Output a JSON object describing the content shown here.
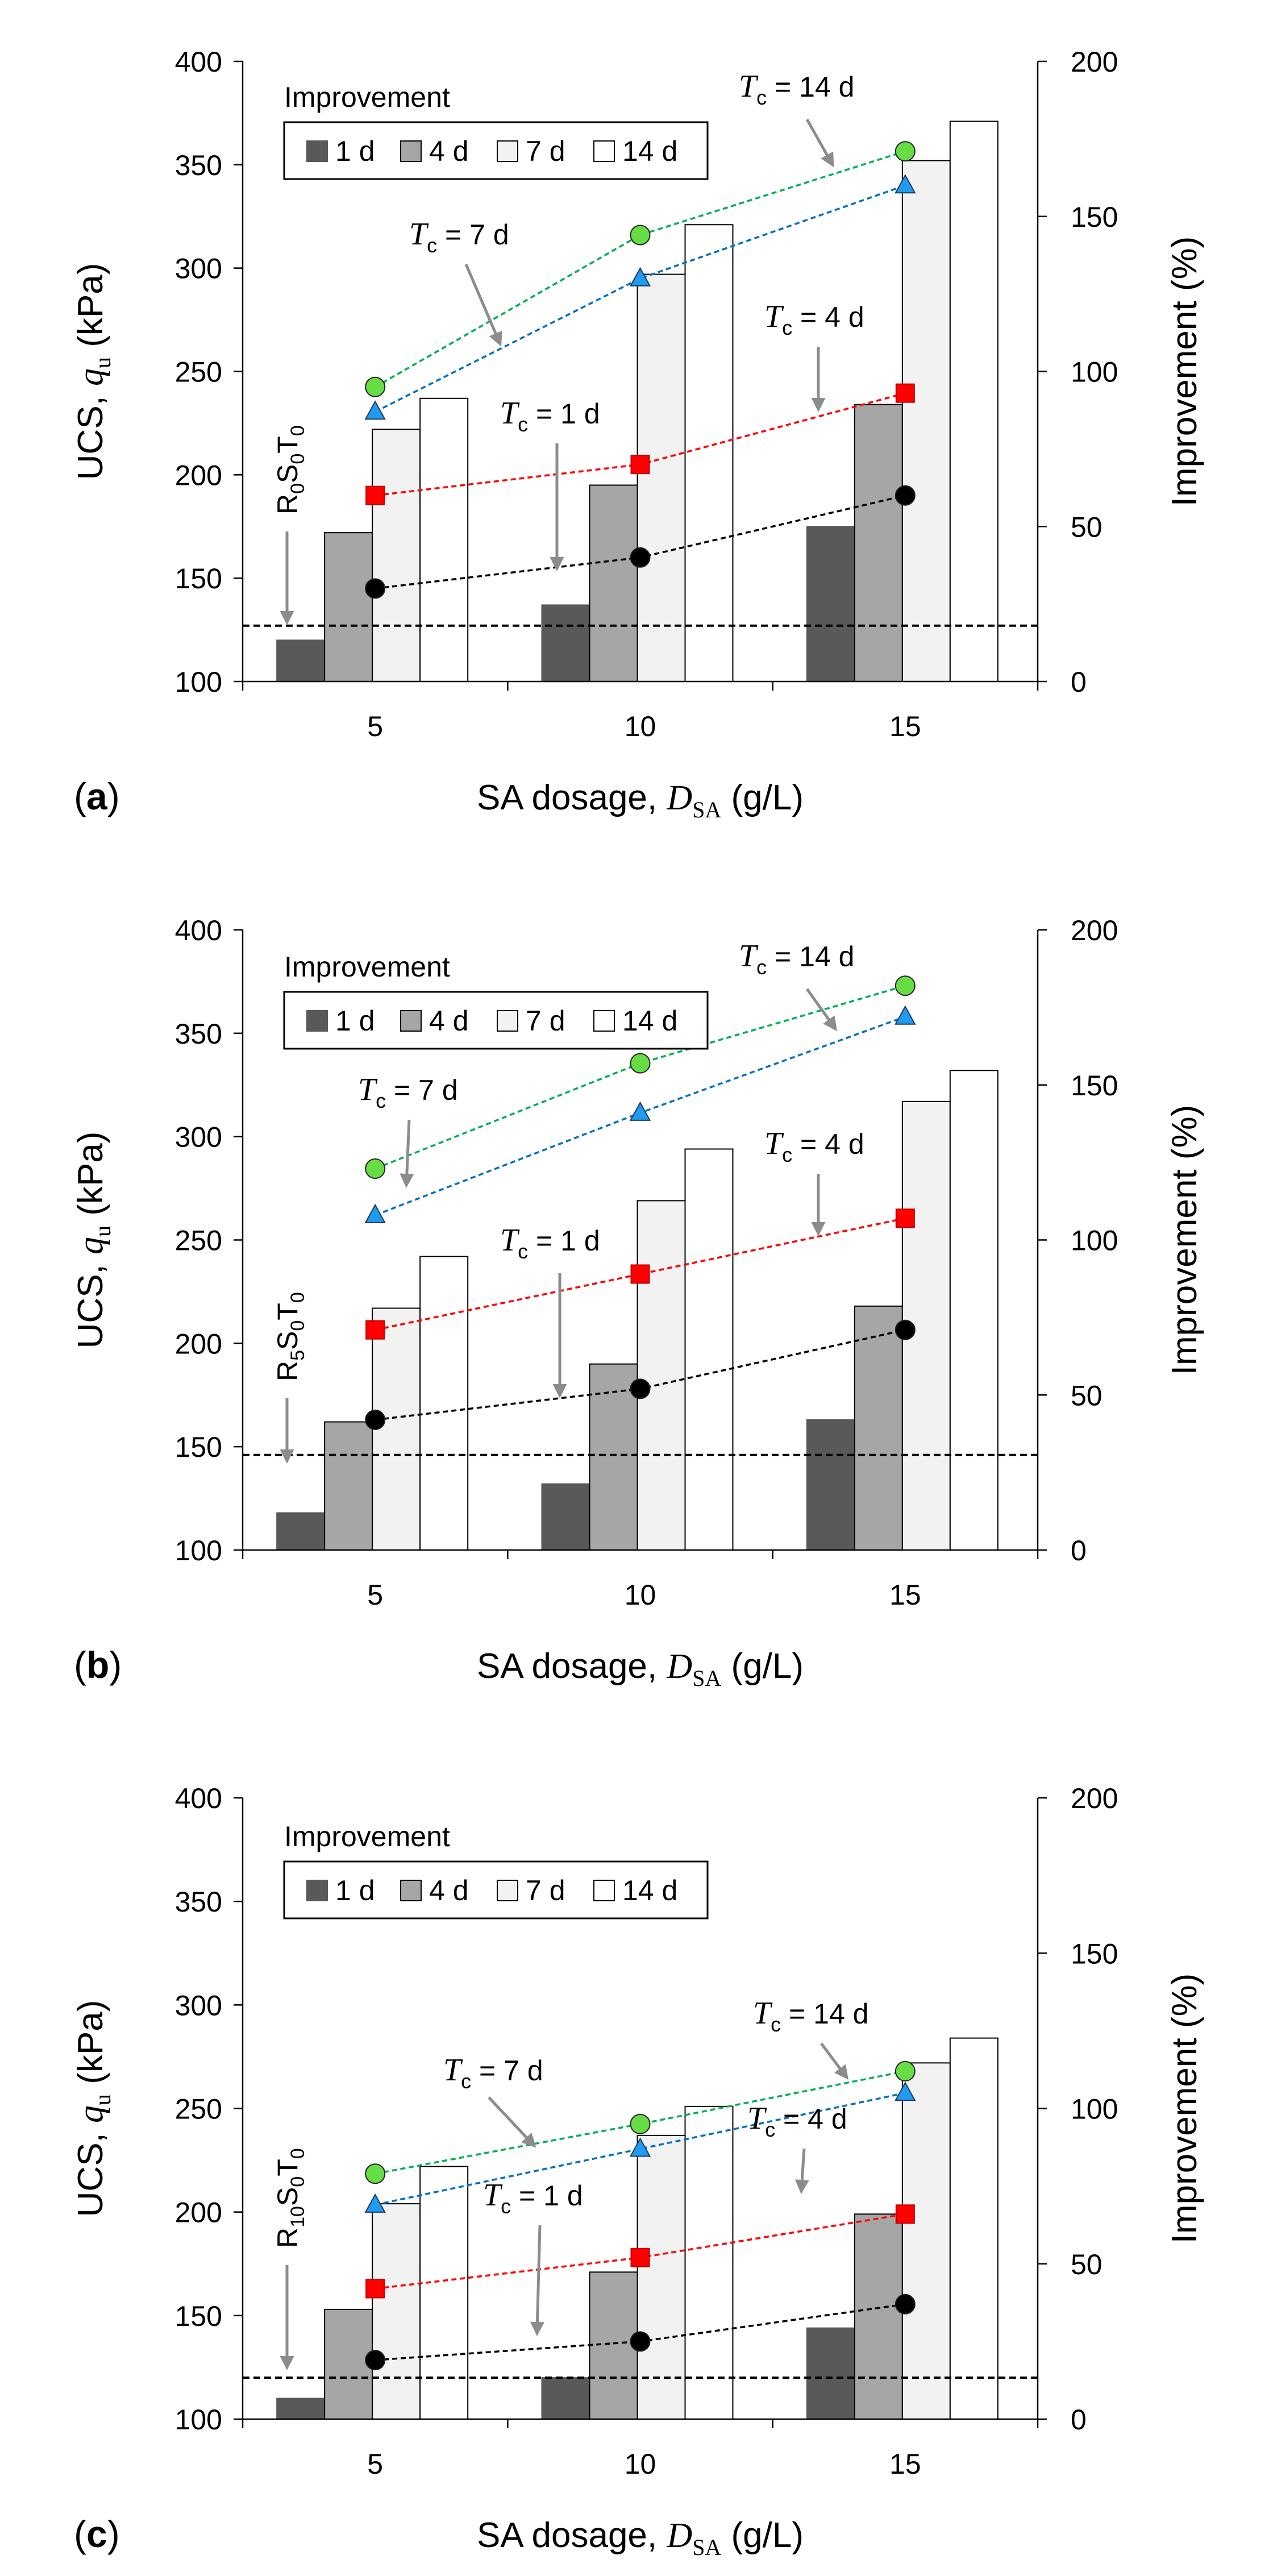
{
  "figure": {
    "legend_title": "Improvement",
    "legend_items": [
      "1 d",
      "4 d",
      "7 d",
      "14 d"
    ],
    "bar_colors": [
      "#595959",
      "#a6a6a6",
      "#f2f2f2",
      "#ffffff"
    ],
    "series_colors": {
      "1 d": {
        "line": "#000000",
        "fill": "#000000",
        "marker": "circle"
      },
      "4 d": {
        "line": "#ff0000",
        "fill": "#ff0000",
        "marker": "square"
      },
      "7 d": {
        "line": "#0070c0",
        "fill": "#1f9bf0",
        "marker": "triangle"
      },
      "14 d": {
        "line": "#00b050",
        "fill": "#66dd44",
        "marker": "circle"
      }
    },
    "y_axis_label": "UCS, ",
    "y_axis_symbol": "q",
    "y_axis_sub": "u",
    "y_axis_unit": " (kPa)",
    "y2_axis_label": "Improvement (%)",
    "x_axis_label": "SA dosage, ",
    "x_axis_symbol": "D",
    "x_axis_sub": "SA",
    "x_axis_unit": " (g/L)",
    "tc_symbol": "T",
    "tc_sub": "c"
  },
  "chart_data": [
    {
      "type": "bar",
      "panel_label": "(a)",
      "panel_letter": "a",
      "categories": [
        "5",
        "10",
        "15"
      ],
      "series": [
        {
          "name": "1 d",
          "values": [
            120,
            137,
            175
          ]
        },
        {
          "name": "4 d",
          "values": [
            172,
            195,
            234
          ]
        },
        {
          "name": "7 d",
          "values": [
            222,
            297,
            352
          ]
        },
        {
          "name": "14 d",
          "values": [
            237,
            321,
            371
          ]
        }
      ],
      "improvement_series": [
        {
          "name": "1 d",
          "label": "T_c = 1 d",
          "values": [
            30,
            40,
            60
          ]
        },
        {
          "name": "4 d",
          "label": "T_c = 4 d",
          "values": [
            60,
            70,
            93
          ]
        },
        {
          "name": "7 d",
          "label": "T_c = 7 d",
          "values": [
            87,
            130,
            160
          ]
        },
        {
          "name": "14 d",
          "label": "T_c = 14 d",
          "values": [
            95,
            144,
            171
          ]
        }
      ],
      "reference_line": 127,
      "reference_label": {
        "main": "R",
        "s1": "0",
        "mid": "S",
        "s2": "0",
        "end": "T",
        "s3": "0"
      },
      "tc_labels": [
        "= 1 d",
        "= 4 d",
        "= 7 d",
        "= 14 d"
      ],
      "ylim": [
        100,
        400
      ],
      "y2lim": [
        0,
        200
      ],
      "yticks": [
        "100",
        "150",
        "200",
        "250",
        "300",
        "350",
        "400"
      ],
      "y2ticks": [
        "0",
        "50",
        "100",
        "150",
        "200"
      ]
    },
    {
      "type": "bar",
      "panel_label": "(b)",
      "panel_letter": "b",
      "categories": [
        "5",
        "10",
        "15"
      ],
      "series": [
        {
          "name": "1 d",
          "values": [
            118,
            132,
            163
          ]
        },
        {
          "name": "4 d",
          "values": [
            162,
            190,
            218
          ]
        },
        {
          "name": "7 d",
          "values": [
            217,
            269,
            317
          ]
        },
        {
          "name": "14 d",
          "values": [
            242,
            294,
            332
          ]
        }
      ],
      "improvement_series": [
        {
          "name": "1 d",
          "label": "T_c = 1 d",
          "values": [
            42,
            52,
            71
          ]
        },
        {
          "name": "4 d",
          "label": "T_c = 4 d",
          "values": [
            71,
            89,
            107
          ]
        },
        {
          "name": "7 d",
          "label": "T_c = 7 d",
          "values": [
            108,
            141,
            172
          ]
        },
        {
          "name": "14 d",
          "label": "T_c = 14 d",
          "values": [
            123,
            157,
            182
          ]
        }
      ],
      "reference_line": 146,
      "reference_label": {
        "main": "R",
        "s1": "5",
        "mid": "S",
        "s2": "0",
        "end": "T",
        "s3": "0"
      },
      "tc_labels": [
        "= 1 d",
        "= 4 d",
        "= 7 d",
        "= 14 d"
      ],
      "ylim": [
        100,
        400
      ],
      "y2lim": [
        0,
        200
      ],
      "yticks": [
        "100",
        "150",
        "200",
        "250",
        "300",
        "350",
        "400"
      ],
      "y2ticks": [
        "0",
        "50",
        "100",
        "150",
        "200"
      ]
    },
    {
      "type": "bar",
      "panel_label": "(c)",
      "panel_letter": "c",
      "categories": [
        "5",
        "10",
        "15"
      ],
      "series": [
        {
          "name": "1 d",
          "values": [
            110,
            120,
            144
          ]
        },
        {
          "name": "4 d",
          "values": [
            153,
            171,
            199
          ]
        },
        {
          "name": "7 d",
          "values": [
            204,
            237,
            272
          ]
        },
        {
          "name": "14 d",
          "values": [
            222,
            251,
            284
          ]
        }
      ],
      "improvement_series": [
        {
          "name": "1 d",
          "label": "T_c = 1 d",
          "values": [
            19,
            25,
            37
          ]
        },
        {
          "name": "4 d",
          "label": "T_c = 4 d",
          "values": [
            42,
            52,
            66
          ]
        },
        {
          "name": "7 d",
          "label": "T_c = 7 d",
          "values": [
            69,
            87,
            105
          ]
        },
        {
          "name": "14 d",
          "label": "T_c = 14 d",
          "values": [
            79,
            95,
            112
          ]
        }
      ],
      "reference_line": 120,
      "reference_label": {
        "main": "R",
        "s1": "10",
        "mid": "S",
        "s2": "0",
        "end": "T",
        "s3": "0"
      },
      "tc_labels": [
        "= 1 d",
        "= 4 d",
        "= 7 d",
        "= 14 d"
      ],
      "ylim": [
        100,
        400
      ],
      "y2lim": [
        0,
        200
      ],
      "yticks": [
        "100",
        "150",
        "200",
        "250",
        "300",
        "350",
        "400"
      ],
      "y2ticks": [
        "0",
        "50",
        "100",
        "150",
        "200"
      ]
    }
  ]
}
